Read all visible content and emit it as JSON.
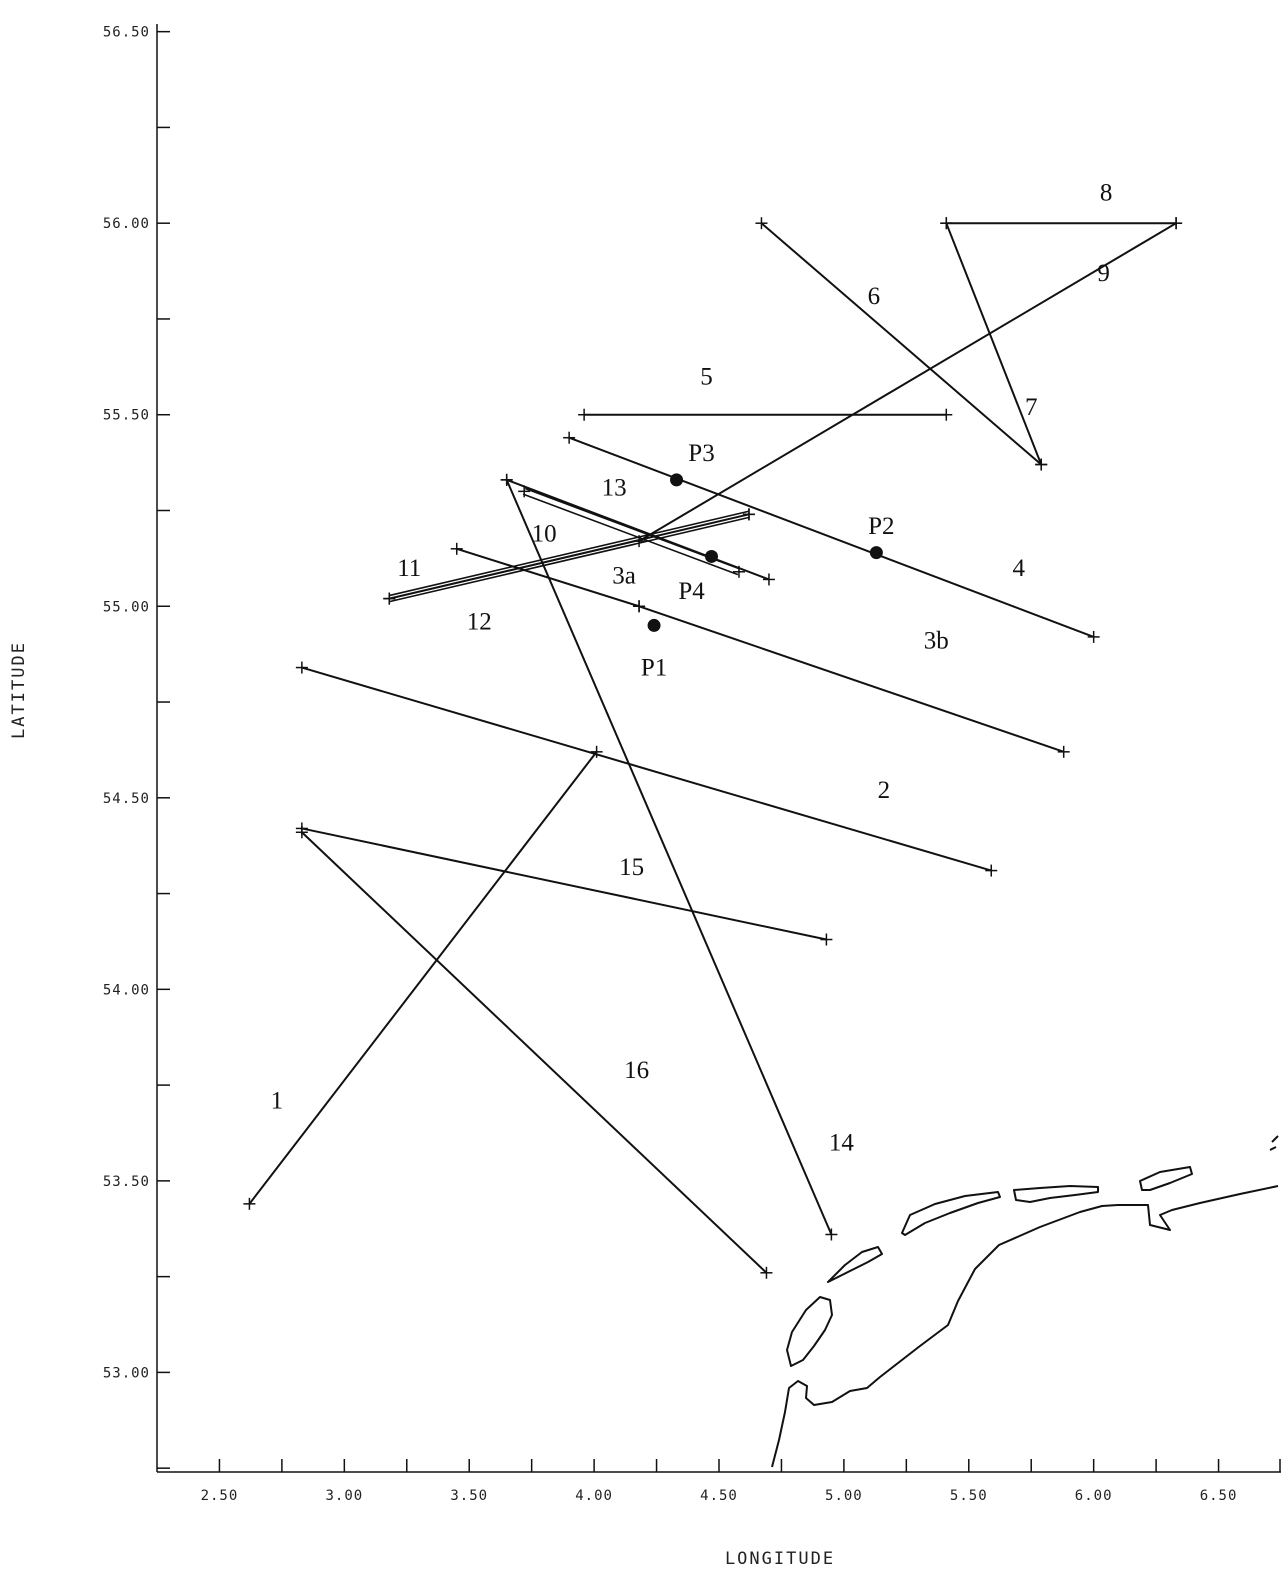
{
  "axes": {
    "xlabel": "LONGITUDE",
    "ylabel": "LATITUDE",
    "xlim": [
      2.25,
      6.75
    ],
    "ylim": [
      52.74,
      56.52
    ],
    "xticks": [
      "2.50",
      "3.00",
      "3.50",
      "4.00",
      "4.50",
      "5.00",
      "5.50",
      "6.00",
      "6.50"
    ],
    "yticks": [
      "53.00",
      "53.50",
      "54.00",
      "54.50",
      "55.00",
      "55.50",
      "56.00",
      "56.50"
    ]
  },
  "tracks": [
    {
      "label": "1",
      "points": [
        [
          2.62,
          53.44
        ],
        [
          4.01,
          54.62
        ]
      ],
      "label_pos": [
        2.73,
        53.71
      ]
    },
    {
      "label": "2",
      "points": [
        [
          2.83,
          54.84
        ],
        [
          5.59,
          54.31
        ]
      ],
      "label_pos": [
        5.16,
        54.52
      ]
    },
    {
      "label": "3a",
      "points": [
        [
          3.45,
          55.15
        ],
        [
          4.18,
          55.0
        ]
      ],
      "label_pos": [
        4.12,
        55.08
      ]
    },
    {
      "label": "3b",
      "points": [
        [
          4.18,
          55.0
        ],
        [
          5.88,
          54.62
        ]
      ],
      "label_pos": [
        5.37,
        54.91
      ]
    },
    {
      "label": "4",
      "points": [
        [
          3.9,
          55.44
        ],
        [
          6.0,
          54.92
        ]
      ],
      "label_pos": [
        5.7,
        55.1
      ]
    },
    {
      "label": "5",
      "points": [
        [
          3.96,
          55.5
        ],
        [
          5.41,
          55.5
        ]
      ],
      "label_pos": [
        4.45,
        55.6
      ]
    },
    {
      "label": "6",
      "points": [
        [
          4.67,
          56.0
        ],
        [
          5.79,
          55.37
        ]
      ],
      "label_pos": [
        5.12,
        55.81
      ]
    },
    {
      "label": "7",
      "points": [
        [
          5.41,
          56.0
        ],
        [
          5.79,
          55.37
        ]
      ],
      "label_pos": [
        5.75,
        55.52
      ]
    },
    {
      "label": "8",
      "points": [
        [
          5.41,
          56.0
        ],
        [
          6.33,
          56.0
        ]
      ],
      "label_pos": [
        6.05,
        56.08
      ]
    },
    {
      "label": "9",
      "points": [
        [
          4.18,
          55.17
        ],
        [
          6.33,
          56.0
        ]
      ],
      "label_pos": [
        6.04,
        55.87
      ]
    },
    {
      "label": "10",
      "points": [
        [
          3.72,
          55.3
        ],
        [
          4.58,
          55.09
        ]
      ],
      "label_pos": [
        3.8,
        55.19
      ],
      "double": true
    },
    {
      "label": "11",
      "points": [
        [
          3.18,
          55.02
        ],
        [
          4.62,
          55.24
        ]
      ],
      "label_pos": [
        3.26,
        55.1
      ],
      "double": true
    },
    {
      "label": "12",
      "points": [
        [
          3.18,
          55.02
        ],
        [
          4.62,
          55.24
        ]
      ],
      "label_pos": [
        3.54,
        54.96
      ]
    },
    {
      "label": "13",
      "points": [
        [
          3.65,
          55.33
        ],
        [
          4.7,
          55.07
        ]
      ],
      "label_pos": [
        4.08,
        55.31
      ]
    },
    {
      "label": "14",
      "points": [
        [
          3.65,
          55.33
        ],
        [
          4.95,
          53.36
        ]
      ],
      "label_pos": [
        4.99,
        53.6
      ]
    },
    {
      "label": "15",
      "points": [
        [
          2.83,
          54.42
        ],
        [
          4.93,
          54.13
        ]
      ],
      "label_pos": [
        4.15,
        54.32
      ]
    },
    {
      "label": "16",
      "points": [
        [
          2.83,
          54.41
        ],
        [
          4.69,
          53.26
        ]
      ],
      "label_pos": [
        4.17,
        53.79
      ]
    }
  ],
  "stations": [
    {
      "label": "P1",
      "lon": 4.24,
      "lat": 54.95,
      "label_pos": [
        4.24,
        54.84
      ]
    },
    {
      "label": "P2",
      "lon": 5.13,
      "lat": 55.14,
      "label_pos": [
        5.15,
        55.21
      ]
    },
    {
      "label": "P3",
      "lon": 4.33,
      "lat": 55.33,
      "label_pos": [
        4.43,
        55.4
      ]
    },
    {
      "label": "P4",
      "lon": 4.47,
      "lat": 55.13,
      "label_pos": [
        4.39,
        55.04
      ]
    }
  ],
  "colors": {
    "ink": "#111111",
    "background": "#ffffff"
  }
}
